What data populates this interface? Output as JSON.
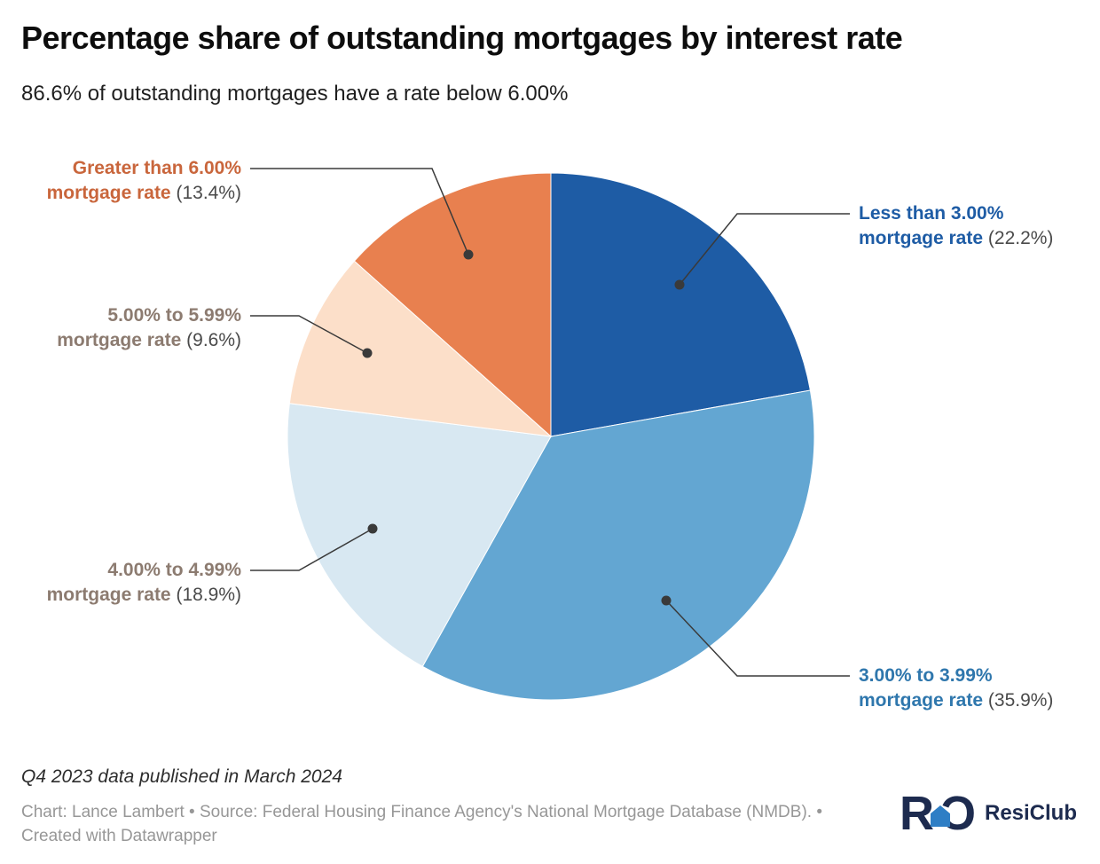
{
  "chart_data": {
    "type": "pie",
    "title": "Percentage share of outstanding mortgages by interest rate",
    "subtitle": "86.6% of outstanding mortgages have a rate below 6.00%",
    "unit": "%",
    "start_angle_deg": 0,
    "direction": "clockwise",
    "legend_position": "outside-callouts",
    "leader_line_color": "#3a3a3a",
    "pct_text_color": "#4a4a4a",
    "slices": [
      {
        "id": "less-than-3",
        "category": "Less than 3.00% mortgage rate",
        "value": 22.2,
        "color": "#1e5ca5",
        "label_color": "#1e5ca5",
        "label_line1": "Less than 3.00%",
        "label_line2": "mortgage rate",
        "pct_label": "(22.2%)"
      },
      {
        "id": "3-to-3-99",
        "category": "3.00% to 3.99% mortgage rate",
        "value": 35.9,
        "color": "#63a6d2",
        "label_color": "#2f77ad",
        "label_line1": "3.00% to 3.99%",
        "label_line2": "mortgage rate",
        "pct_label": "(35.9%)"
      },
      {
        "id": "4-to-4-99",
        "category": "4.00% to 4.99% mortgage rate",
        "value": 18.9,
        "color": "#d8e8f2",
        "label_color": "#8c7b70",
        "label_line1": "4.00% to 4.99%",
        "label_line2": "mortgage rate",
        "pct_label": "(18.9%)"
      },
      {
        "id": "5-to-5-99",
        "category": "5.00% to 5.99% mortgage rate",
        "value": 9.6,
        "color": "#fcdfc9",
        "label_color": "#8c7b70",
        "label_line1": "5.00% to 5.99%",
        "label_line2": "mortgage rate",
        "pct_label": "(9.6%)"
      },
      {
        "id": "greater-than-6",
        "category": "Greater than 6.00% mortgage rate",
        "value": 13.4,
        "color": "#e8804f",
        "label_color": "#c9663c",
        "label_line1": "Greater than 6.00%",
        "label_line2": "mortgage rate",
        "pct_label": "(13.4%)"
      }
    ]
  },
  "footer": {
    "note": "Q4 2023 data published in March 2024",
    "credits": "Chart: Lance Lambert • Source: Federal Housing Finance Agency's National Mortgage Database (NMDB). • Created with Datawrapper",
    "brand": "ResiClub",
    "logo_r": "R",
    "logo_c": "Ɔ"
  }
}
